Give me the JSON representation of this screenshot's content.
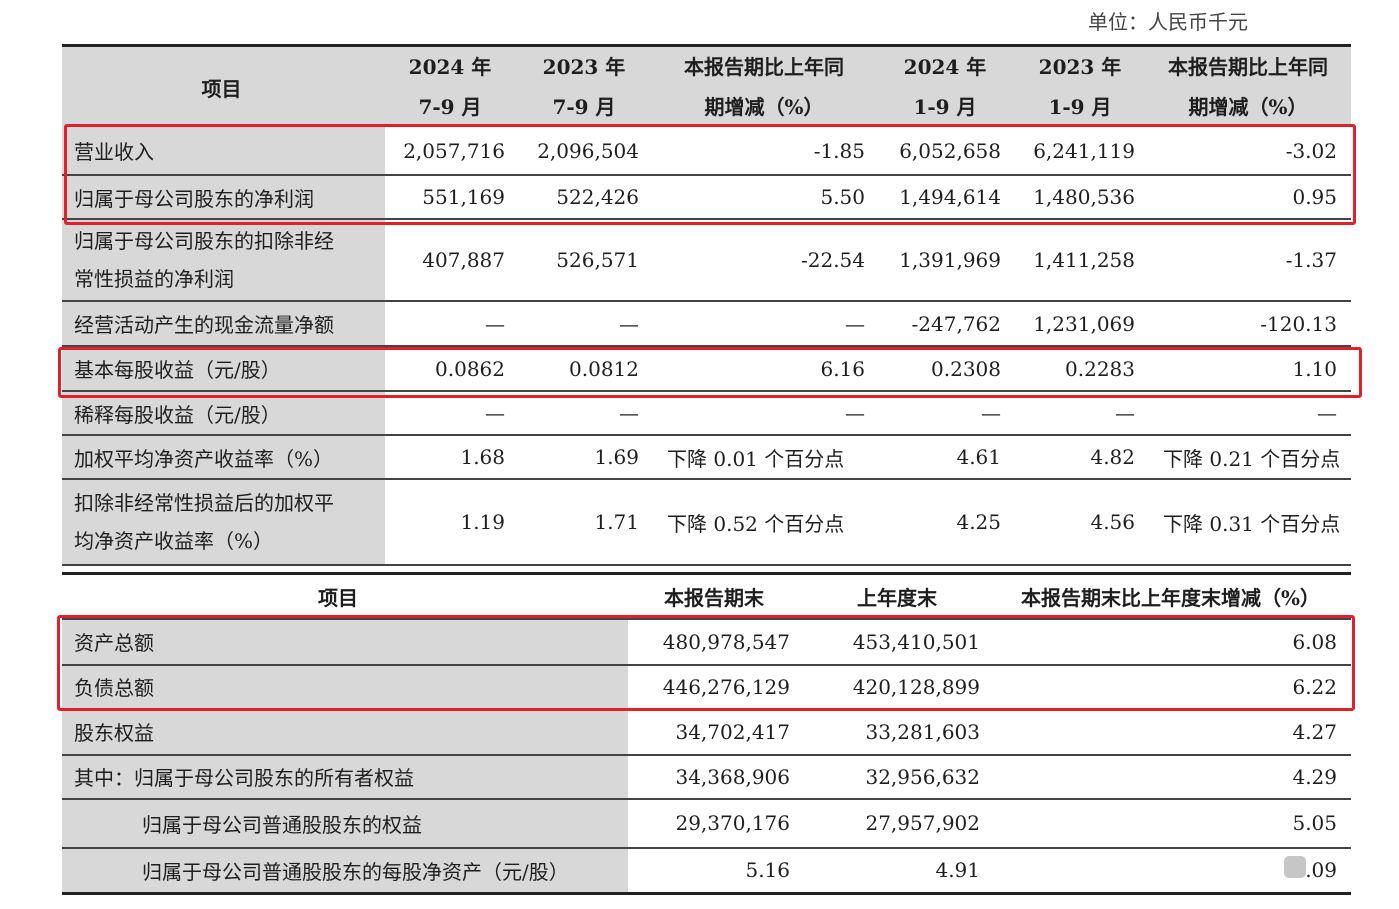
{
  "unit": "单位：人民币千元",
  "table1": {
    "headers": {
      "item": "项目",
      "q3_2024": [
        "2024 年",
        "7-9 月"
      ],
      "q3_2023": [
        "2023 年",
        "7-9 月"
      ],
      "q3_change": [
        "本报告期比上年同",
        "期增减（%）"
      ],
      "ytd_2024": [
        "2024 年",
        "1-9 月"
      ],
      "ytd_2023": [
        "2023 年",
        "1-9 月"
      ],
      "ytd_change": [
        "本报告期比上年同",
        "期增减（%）"
      ]
    },
    "rows": [
      {
        "label": [
          "营业收入"
        ],
        "values": [
          "2,057,716",
          "2,096,504",
          "-1.85",
          "6,052,658",
          "6,241,119",
          "-3.02"
        ]
      },
      {
        "label": [
          "归属于母公司股东的净利润"
        ],
        "values": [
          "551,169",
          "522,426",
          "5.50",
          "1,494,614",
          "1,480,536",
          "0.95"
        ]
      },
      {
        "label": [
          "归属于母公司股东的扣除非经",
          "常性损益的净利润"
        ],
        "values": [
          "407,887",
          "526,571",
          "-22.54",
          "1,391,969",
          "1,411,258",
          "-1.37"
        ]
      },
      {
        "label": [
          "经营活动产生的现金流量净额"
        ],
        "values": [
          "—",
          "—",
          "—",
          "-247,762",
          "1,231,069",
          "-120.13"
        ]
      },
      {
        "label": [
          "基本每股收益（元/股）"
        ],
        "values": [
          "0.0862",
          "0.0812",
          "6.16",
          "0.2308",
          "0.2283",
          "1.10"
        ]
      },
      {
        "label": [
          "稀释每股收益（元/股）"
        ],
        "values": [
          "—",
          "—",
          "—",
          "—",
          "—",
          "—"
        ]
      },
      {
        "label": [
          "加权平均净资产收益率（%）"
        ],
        "values": [
          "1.68",
          "1.69",
          "下降 0.01 个百分点",
          "4.61",
          "4.82",
          "下降 0.21 个百分点"
        ]
      },
      {
        "label": [
          "扣除非经常性损益后的加权平",
          "均净资产收益率（%）"
        ],
        "values": [
          "1.19",
          "1.71",
          "下降 0.52 个百分点",
          "4.25",
          "4.56",
          "下降 0.31 个百分点"
        ]
      }
    ]
  },
  "table2": {
    "headers": {
      "item": "项目",
      "period_end": "本报告期末",
      "prior_year_end": "上年度末",
      "change": "本报告期末比上年度末增减（%）"
    },
    "rows": [
      {
        "label": "资产总额",
        "values": [
          "480,978,547",
          "453,410,501",
          "6.08"
        ]
      },
      {
        "label": "负债总额",
        "values": [
          "446,276,129",
          "420,128,899",
          "6.22"
        ]
      },
      {
        "label": "股东权益",
        "values": [
          "34,702,417",
          "33,281,603",
          "4.27"
        ]
      },
      {
        "label": "其中：归属于母公司股东的所有者权益",
        "values": [
          "34,368,906",
          "32,956,632",
          "4.29"
        ]
      },
      {
        "label": "归属于母公司普通股股东的权益",
        "values": [
          "29,370,176",
          "27,957,902",
          "5.05"
        ]
      },
      {
        "label": "归属于母公司普通股股东的每股净资产（元/股）",
        "values": [
          "5.16",
          "4.91",
          "5.09"
        ]
      }
    ]
  },
  "highlight_color": "#e0202a",
  "watermark_icon": "brand-logo-icon"
}
